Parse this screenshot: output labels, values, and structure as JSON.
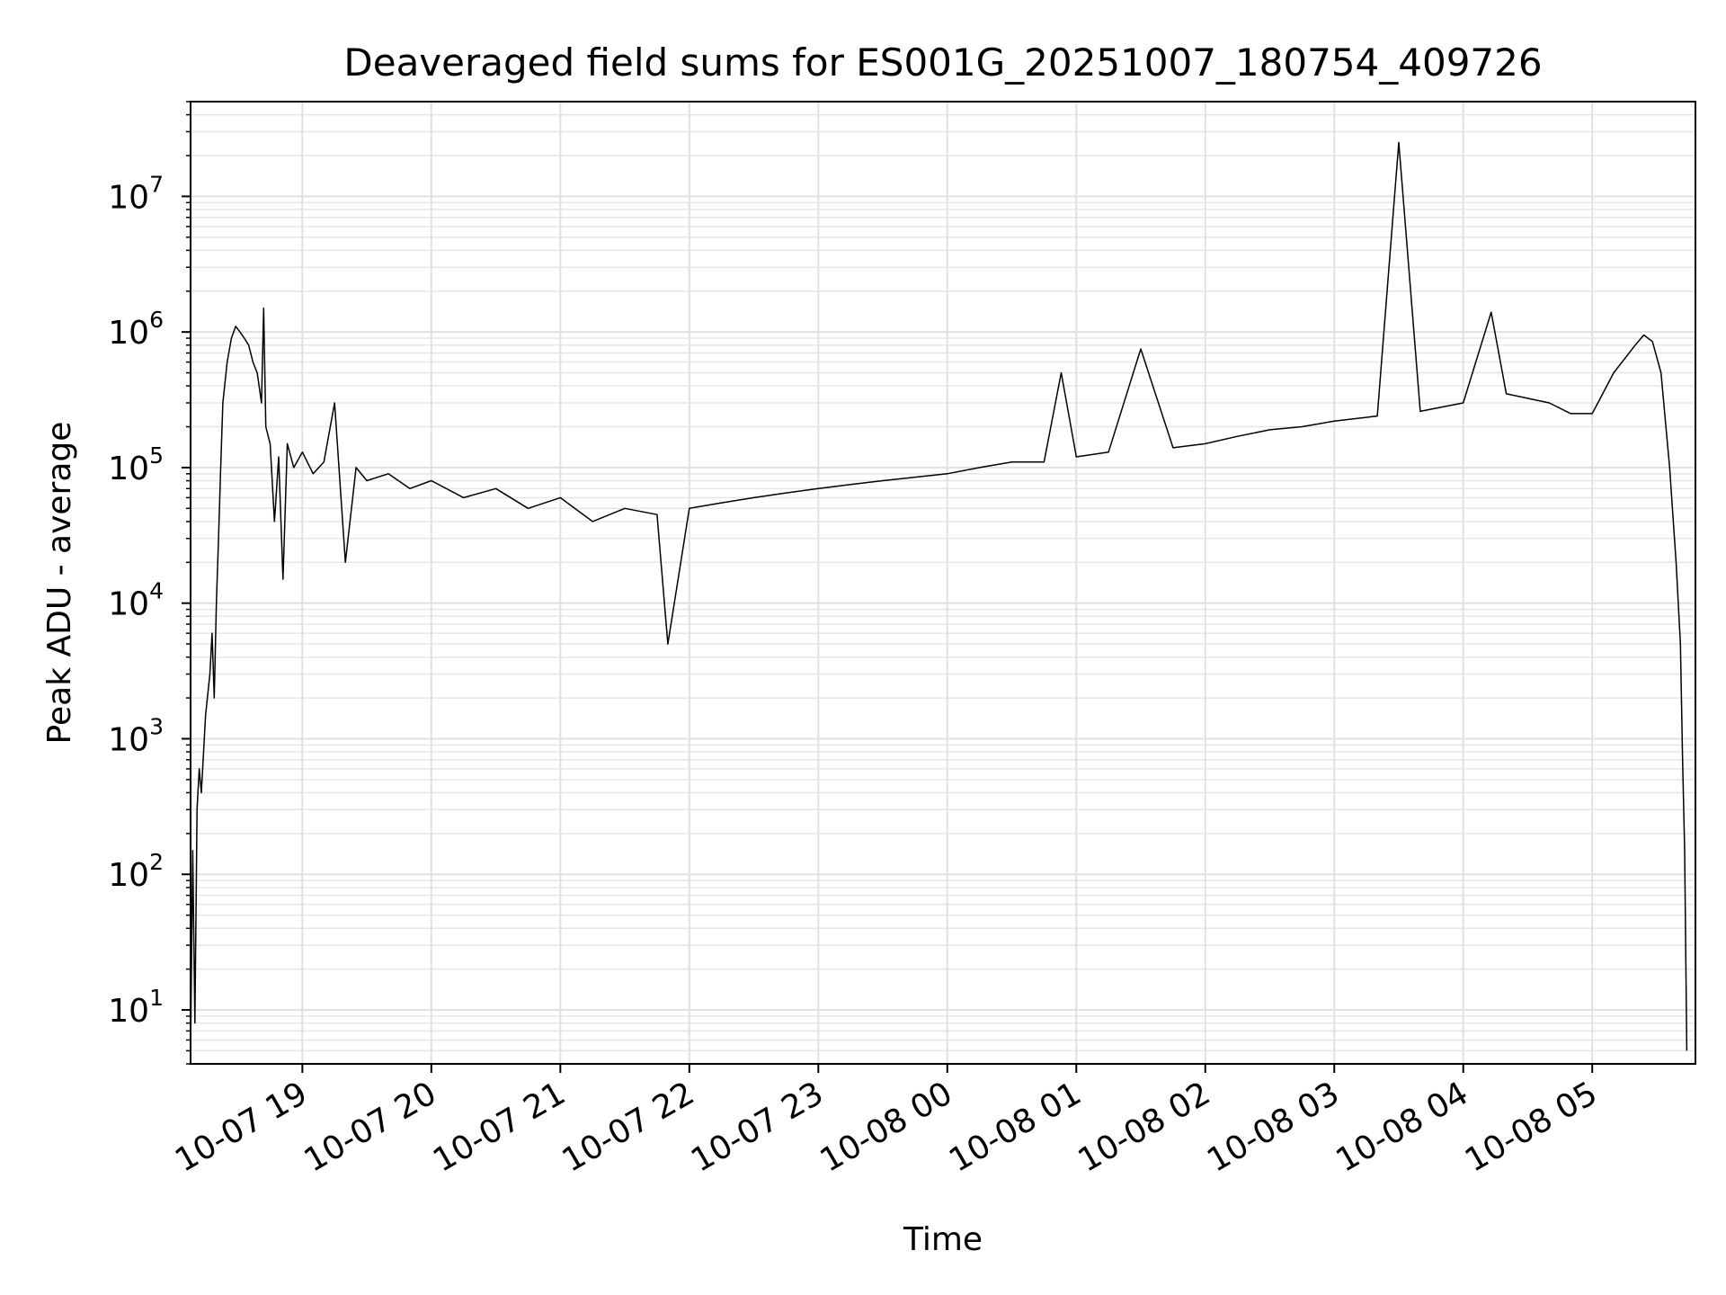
{
  "chart_data": {
    "type": "line",
    "title": "Deaveraged field sums for ES001G_20251007_180754_409726",
    "xlabel": "Time",
    "ylabel": "Peak ADU - average",
    "x_scale": "time",
    "y_scale": "log",
    "xlim": [
      "2025-10-07 18:08",
      "2025-10-08 05:48"
    ],
    "ylim": [
      4,
      50000000
    ],
    "grid": true,
    "line_color": "#000000",
    "x_ticks": [
      {
        "t": "2025-10-07 19:00",
        "label": "10-07 19"
      },
      {
        "t": "2025-10-07 20:00",
        "label": "10-07 20"
      },
      {
        "t": "2025-10-07 21:00",
        "label": "10-07 21"
      },
      {
        "t": "2025-10-07 22:00",
        "label": "10-07 22"
      },
      {
        "t": "2025-10-07 23:00",
        "label": "10-07 23"
      },
      {
        "t": "2025-10-08 00:00",
        "label": "10-08 00"
      },
      {
        "t": "2025-10-08 01:00",
        "label": "10-08 01"
      },
      {
        "t": "2025-10-08 02:00",
        "label": "10-08 02"
      },
      {
        "t": "2025-10-08 03:00",
        "label": "10-08 03"
      },
      {
        "t": "2025-10-08 04:00",
        "label": "10-08 04"
      },
      {
        "t": "2025-10-08 05:00",
        "label": "10-08 05"
      }
    ],
    "y_ticks": [
      {
        "v": 10,
        "base": "10",
        "exp": "1"
      },
      {
        "v": 100,
        "base": "10",
        "exp": "2"
      },
      {
        "v": 1000,
        "base": "10",
        "exp": "3"
      },
      {
        "v": 10000,
        "base": "10",
        "exp": "4"
      },
      {
        "v": 100000,
        "base": "10",
        "exp": "5"
      },
      {
        "v": 1000000,
        "base": "10",
        "exp": "6"
      },
      {
        "v": 10000000,
        "base": "10",
        "exp": "7"
      }
    ],
    "series": [
      {
        "points": [
          [
            "2025-10-07 18:08",
            5
          ],
          [
            "2025-10-07 18:09",
            150
          ],
          [
            "2025-10-07 18:10",
            8
          ],
          [
            "2025-10-07 18:11",
            300
          ],
          [
            "2025-10-07 18:12",
            600
          ],
          [
            "2025-10-07 18:13",
            400
          ],
          [
            "2025-10-07 18:15",
            1500
          ],
          [
            "2025-10-07 18:17",
            3000
          ],
          [
            "2025-10-07 18:18",
            6000
          ],
          [
            "2025-10-07 18:19",
            2000
          ],
          [
            "2025-10-07 18:20",
            10000
          ],
          [
            "2025-10-07 18:21",
            30000
          ],
          [
            "2025-10-07 18:22",
            100000
          ],
          [
            "2025-10-07 18:23",
            300000
          ],
          [
            "2025-10-07 18:25",
            600000
          ],
          [
            "2025-10-07 18:27",
            900000
          ],
          [
            "2025-10-07 18:29",
            1100000
          ],
          [
            "2025-10-07 18:31",
            1000000
          ],
          [
            "2025-10-07 18:33",
            900000
          ],
          [
            "2025-10-07 18:35",
            800000
          ],
          [
            "2025-10-07 18:37",
            600000
          ],
          [
            "2025-10-07 18:39",
            500000
          ],
          [
            "2025-10-07 18:41",
            300000
          ],
          [
            "2025-10-07 18:42",
            1500000
          ],
          [
            "2025-10-07 18:43",
            200000
          ],
          [
            "2025-10-07 18:45",
            150000
          ],
          [
            "2025-10-07 18:47",
            40000
          ],
          [
            "2025-10-07 18:49",
            120000
          ],
          [
            "2025-10-07 18:51",
            15000
          ],
          [
            "2025-10-07 18:53",
            150000
          ],
          [
            "2025-10-07 18:56",
            100000
          ],
          [
            "2025-10-07 19:00",
            130000
          ],
          [
            "2025-10-07 19:05",
            90000
          ],
          [
            "2025-10-07 19:10",
            110000
          ],
          [
            "2025-10-07 19:15",
            300000
          ],
          [
            "2025-10-07 19:20",
            20000
          ],
          [
            "2025-10-07 19:25",
            100000
          ],
          [
            "2025-10-07 19:30",
            80000
          ],
          [
            "2025-10-07 19:40",
            90000
          ],
          [
            "2025-10-07 19:50",
            70000
          ],
          [
            "2025-10-07 20:00",
            80000
          ],
          [
            "2025-10-07 20:15",
            60000
          ],
          [
            "2025-10-07 20:30",
            70000
          ],
          [
            "2025-10-07 20:45",
            50000
          ],
          [
            "2025-10-07 21:00",
            60000
          ],
          [
            "2025-10-07 21:15",
            40000
          ],
          [
            "2025-10-07 21:30",
            50000
          ],
          [
            "2025-10-07 21:45",
            45000
          ],
          [
            "2025-10-07 21:50",
            5000
          ],
          [
            "2025-10-07 22:00",
            50000
          ],
          [
            "2025-10-07 22:15",
            55000
          ],
          [
            "2025-10-07 22:30",
            60000
          ],
          [
            "2025-10-07 22:45",
            65000
          ],
          [
            "2025-10-07 23:00",
            70000
          ],
          [
            "2025-10-07 23:15",
            75000
          ],
          [
            "2025-10-07 23:30",
            80000
          ],
          [
            "2025-10-07 23:45",
            85000
          ],
          [
            "2025-10-08 00:00",
            90000
          ],
          [
            "2025-10-08 00:15",
            100000
          ],
          [
            "2025-10-08 00:30",
            110000
          ],
          [
            "2025-10-08 00:45",
            110000
          ],
          [
            "2025-10-08 00:53",
            500000
          ],
          [
            "2025-10-08 01:00",
            120000
          ],
          [
            "2025-10-08 01:15",
            130000
          ],
          [
            "2025-10-08 01:30",
            750000
          ],
          [
            "2025-10-08 01:45",
            140000
          ],
          [
            "2025-10-08 02:00",
            150000
          ],
          [
            "2025-10-08 02:15",
            170000
          ],
          [
            "2025-10-08 02:30",
            190000
          ],
          [
            "2025-10-08 02:45",
            200000
          ],
          [
            "2025-10-08 03:00",
            220000
          ],
          [
            "2025-10-08 03:20",
            240000
          ],
          [
            "2025-10-08 03:30",
            25000000
          ],
          [
            "2025-10-08 03:40",
            260000
          ],
          [
            "2025-10-08 04:00",
            300000
          ],
          [
            "2025-10-08 04:13",
            1400000
          ],
          [
            "2025-10-08 04:20",
            350000
          ],
          [
            "2025-10-08 04:40",
            300000
          ],
          [
            "2025-10-08 04:50",
            250000
          ],
          [
            "2025-10-08 05:00",
            250000
          ],
          [
            "2025-10-08 05:10",
            500000
          ],
          [
            "2025-10-08 05:20",
            800000
          ],
          [
            "2025-10-08 05:24",
            950000
          ],
          [
            "2025-10-08 05:28",
            850000
          ],
          [
            "2025-10-08 05:32",
            500000
          ],
          [
            "2025-10-08 05:36",
            100000
          ],
          [
            "2025-10-08 05:39",
            20000
          ],
          [
            "2025-10-08 05:41",
            5000
          ],
          [
            "2025-10-08 05:42",
            700
          ],
          [
            "2025-10-08 05:43",
            150
          ],
          [
            "2025-10-08 05:44",
            5
          ]
        ]
      }
    ]
  }
}
